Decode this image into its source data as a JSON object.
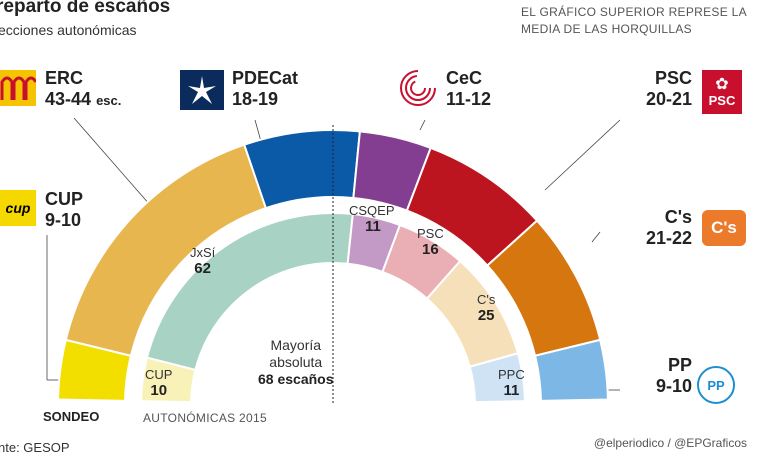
{
  "header": {
    "title": "reparto de escaños",
    "subtitle": "ecciones autonómicas",
    "note": "EL GRÁFICO SUPERIOR REPRESE LA MEDIA DE LAS HORQUILLAS"
  },
  "outer_labels": {
    "erc": {
      "name": "ERC",
      "value": "43-44",
      "unit": "esc."
    },
    "pdecat": {
      "name": "PDECat",
      "value": "18-19"
    },
    "cec": {
      "name": "CeC",
      "value": "11-12"
    },
    "psc": {
      "name": "PSC",
      "value": "20-21"
    },
    "cup": {
      "name": "CUP",
      "value": "9-10"
    },
    "cs": {
      "name": "C's",
      "value": "21-22"
    },
    "pp": {
      "name": "PP",
      "value": "9-10"
    }
  },
  "inner_labels": {
    "jxsi": {
      "name": "JxSí",
      "value": "62"
    },
    "csqep": {
      "name": "CSQEP",
      "value": "11"
    },
    "psc": {
      "name": "PSC",
      "value": "16"
    },
    "cs": {
      "name": "C's",
      "value": "25"
    },
    "ppc": {
      "name": "PPC",
      "value": "11"
    },
    "cup": {
      "name": "CUP",
      "value": "10"
    }
  },
  "majority": {
    "line1": "Mayoría",
    "line2": "absoluta",
    "line3": "68 escaños"
  },
  "labels": {
    "sondeo": "SONDEO",
    "autonomicas": "AUTONÓMICAS 2015"
  },
  "footer": {
    "source": "nte: GESOP",
    "credit": "@elperiodico / @EPGraficos"
  },
  "logos": {
    "psc": "PSC",
    "cs": "C's",
    "pp": "PP",
    "cup": "cup"
  },
  "chart_data": [
    {
      "type": "pie",
      "title": "SONDEO",
      "series": [
        {
          "name": "CUP",
          "value": 9.5,
          "color": "#f2df00"
        },
        {
          "name": "ERC",
          "value": 43.5,
          "color": "#e8b64e"
        },
        {
          "name": "PDECat",
          "value": 18.5,
          "color": "#0a5aa8"
        },
        {
          "name": "CeC",
          "value": 11.5,
          "color": "#843e91"
        },
        {
          "name": "PSC",
          "value": 20.5,
          "color": "#bd1520"
        },
        {
          "name": "C's",
          "value": 21.5,
          "color": "#d6760e"
        },
        {
          "name": "PP",
          "value": 9.5,
          "color": "#7db7e6"
        }
      ]
    },
    {
      "type": "pie",
      "title": "AUTONÓMICAS 2015",
      "series": [
        {
          "name": "CUP",
          "value": 10,
          "color": "#f8f2b8"
        },
        {
          "name": "JxSí",
          "value": 62,
          "color": "#a8d2c4"
        },
        {
          "name": "CSQEP",
          "value": 11,
          "color": "#c39ac6"
        },
        {
          "name": "PSC",
          "value": 16,
          "color": "#eaafb4"
        },
        {
          "name": "C's",
          "value": 25,
          "color": "#f5e0b9"
        },
        {
          "name": "PPC",
          "value": 11,
          "color": "#cfe3f5"
        }
      ]
    }
  ]
}
